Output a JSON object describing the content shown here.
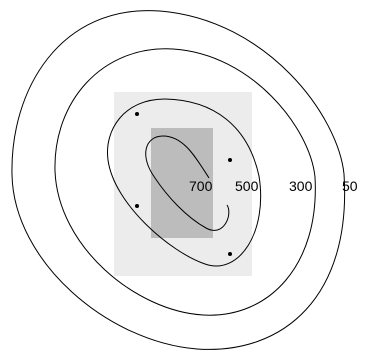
{
  "diagram": {
    "contours": [
      {
        "label": "50"
      },
      {
        "label": "300"
      },
      {
        "label": "500"
      },
      {
        "label": "700"
      }
    ],
    "colors": {
      "outer_box": "#ececec",
      "inner_box": "#bcbcbc",
      "line": "#000000",
      "background": "#ffffff"
    }
  }
}
